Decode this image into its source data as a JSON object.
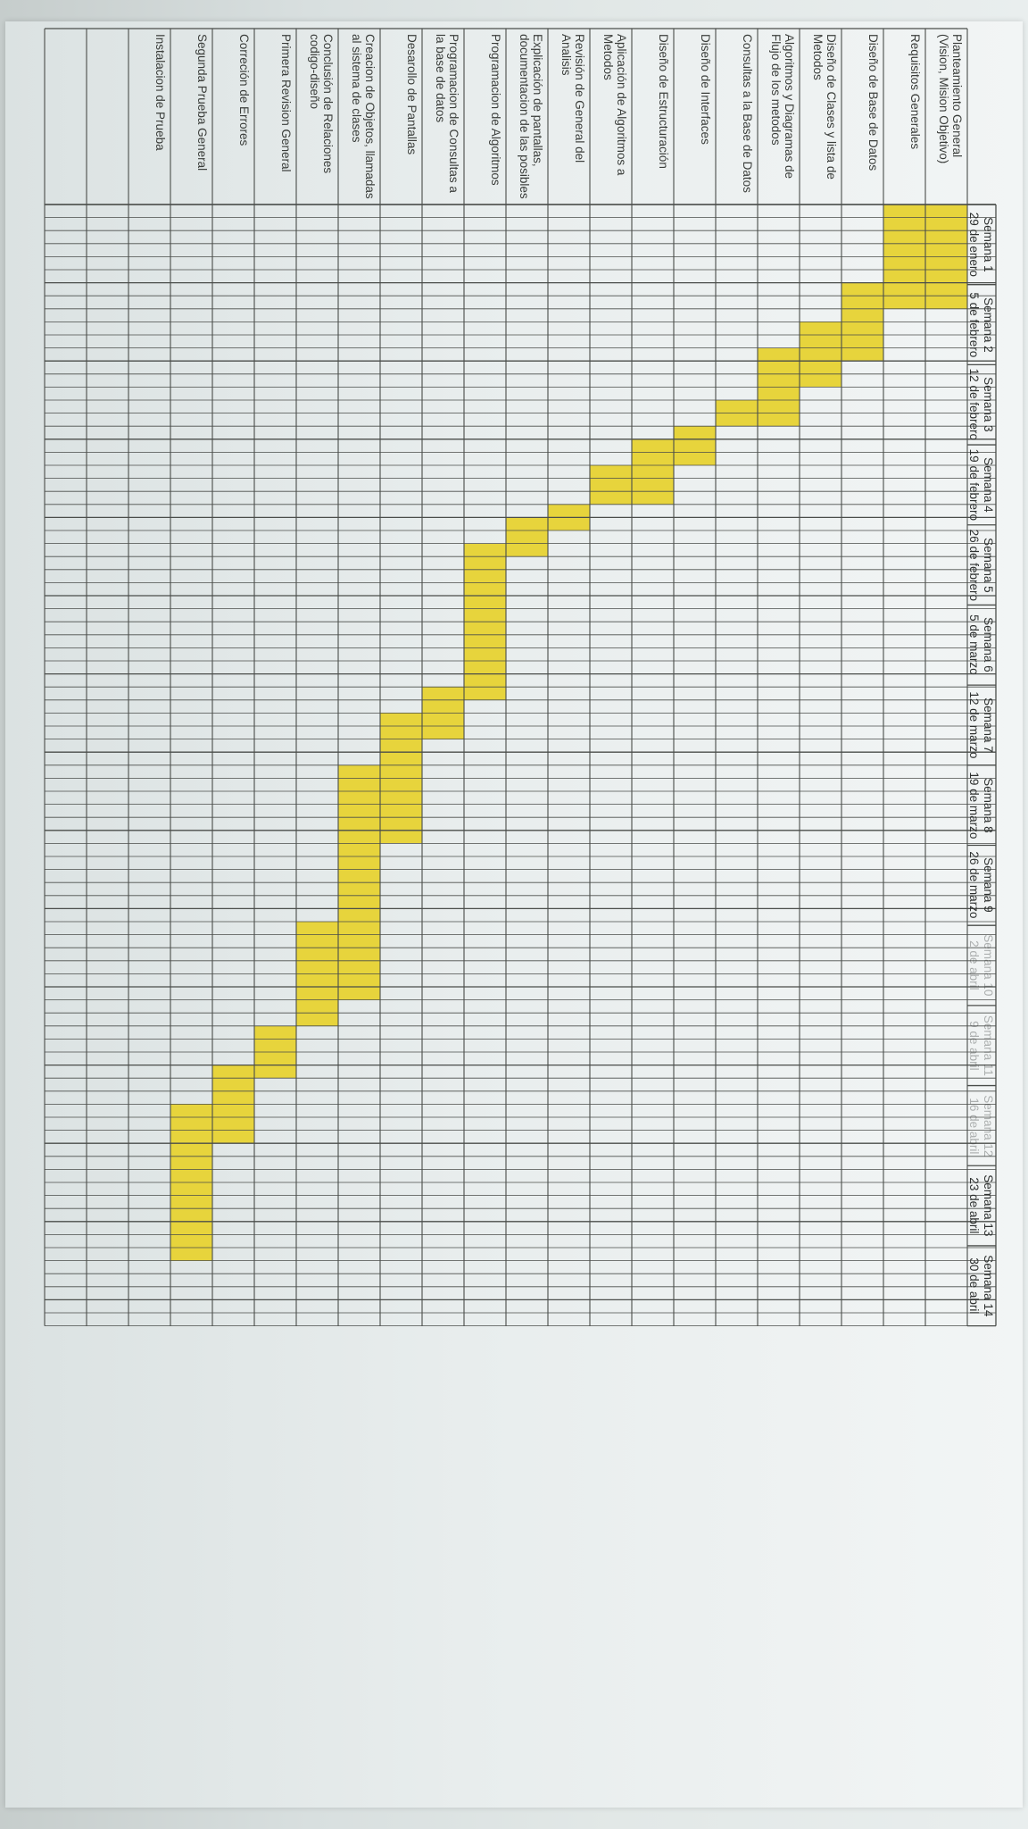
{
  "tasks": [
    {
      "name": "Planteamiento General (Vision, Mision Objetivo)",
      "start": 0,
      "end": 8
    },
    {
      "name": "Requisitos Generales",
      "start": 0,
      "end": 8
    },
    {
      "name": "Diseño de Base de Datos",
      "start": 6,
      "end": 12
    },
    {
      "name": "Diseño de Clases y lista de Metodos",
      "start": 9,
      "end": 14
    },
    {
      "name": "Algoritmos y Diagramas de Flujo de los metodos",
      "start": 11,
      "end": 17
    },
    {
      "name": "Consultas a la Base de Datos",
      "start": 15,
      "end": 17
    },
    {
      "name": "Diseño de Interfaces",
      "start": 17,
      "end": 20
    },
    {
      "name": "Diseño de Estructuración",
      "start": 18,
      "end": 23
    },
    {
      "name": "Aplicación de Algoritmos a Metodos",
      "start": 20,
      "end": 23
    },
    {
      "name": "Revisión de General del Analisis",
      "start": 23,
      "end": 25
    },
    {
      "name": "Explicación de pantallas, documentacion de las posibles",
      "start": 24,
      "end": 27
    },
    {
      "name": "Programacion de Algoritmos",
      "start": 26,
      "end": 38
    },
    {
      "name": "Programacion de Consultas a la base de datos",
      "start": 37,
      "end": 41
    },
    {
      "name": "Desarollo de Pantallas",
      "start": 39,
      "end": 49
    },
    {
      "name": "Creacion de Objetos, llamadas al sistema de clases",
      "start": 43,
      "end": 61
    },
    {
      "name": "Conclusión de Relaciones codigo-diseño",
      "start": 55,
      "end": 63
    },
    {
      "name": "Primera Revision General",
      "start": 63,
      "end": 67
    },
    {
      "name": "Correción de Errores",
      "start": 66,
      "end": 72
    },
    {
      "name": "Segunda Prueba General",
      "start": 69,
      "end": 81
    },
    {
      "name": "Instalacion de Prueba",
      "start": -1,
      "end": -1
    },
    {
      "name": "",
      "start": -1,
      "end": -1
    }
  ],
  "weeks": [
    {
      "label": "Semana 1",
      "date": "29 de enero"
    },
    {
      "label": "Semana 2",
      "date": "5 de febrero"
    },
    {
      "label": "Semana 3",
      "date": "12 de febrero"
    },
    {
      "label": "Semana 4",
      "date": "19 de febrero"
    },
    {
      "label": "Semana 5",
      "date": "26 de febrero"
    },
    {
      "label": "Semana 6",
      "date": "5 de marzo"
    },
    {
      "label": "Semana 7",
      "date": "12 de marzo"
    },
    {
      "label": "Semana 8",
      "date": "19 de marzo"
    },
    {
      "label": "Semana 9",
      "date": "26 de marzo"
    },
    {
      "label": "Semana 10",
      "date": "2 de abril"
    },
    {
      "label": "Semana 11",
      "date": "9 de abril"
    },
    {
      "label": "Semana 12",
      "date": "16 de abril"
    },
    {
      "label": "Semana 13",
      "date": "23 de abril"
    },
    {
      "label": "Semana 14",
      "date": "30 de abril"
    }
  ],
  "colors": {
    "fill": "#e7d43c",
    "grid": "#4a4d4a",
    "text": "#3a3d3a"
  }
}
